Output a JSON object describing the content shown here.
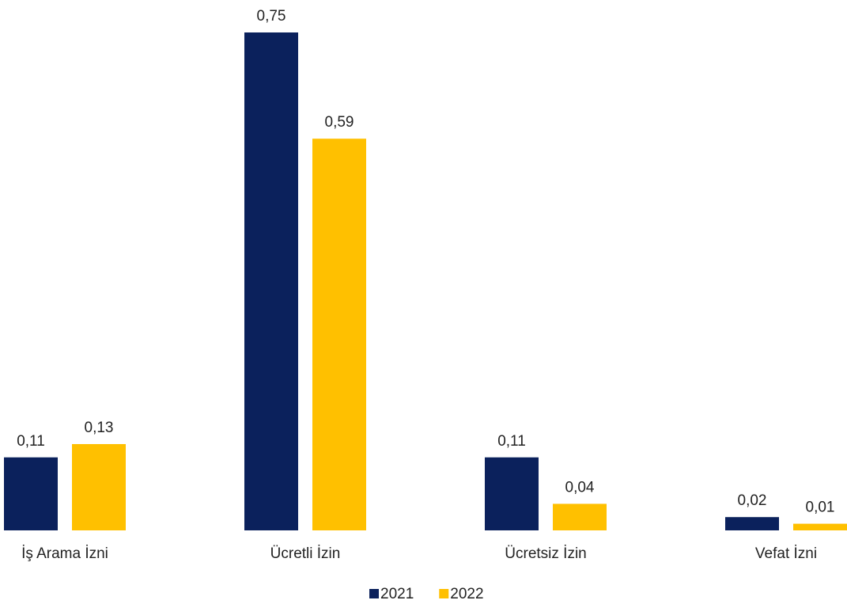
{
  "chart_data": {
    "type": "bar",
    "categories": [
      "İş Arama İzni",
      "Ücretli İzin",
      "Ücretsiz İzin",
      "Vefat İzni"
    ],
    "series": [
      {
        "name": "2021",
        "color": "#0b215c",
        "values": [
          0.11,
          0.75,
          0.11,
          0.02
        ],
        "value_labels": [
          "0,11",
          "0,75",
          "0,11",
          "0,02"
        ]
      },
      {
        "name": "2022",
        "color": "#ffc000",
        "values": [
          0.13,
          0.59,
          0.04,
          0.01
        ],
        "value_labels": [
          "0,13",
          "0,59",
          "0,04",
          "0,01"
        ]
      }
    ],
    "legend": "bottom"
  }
}
